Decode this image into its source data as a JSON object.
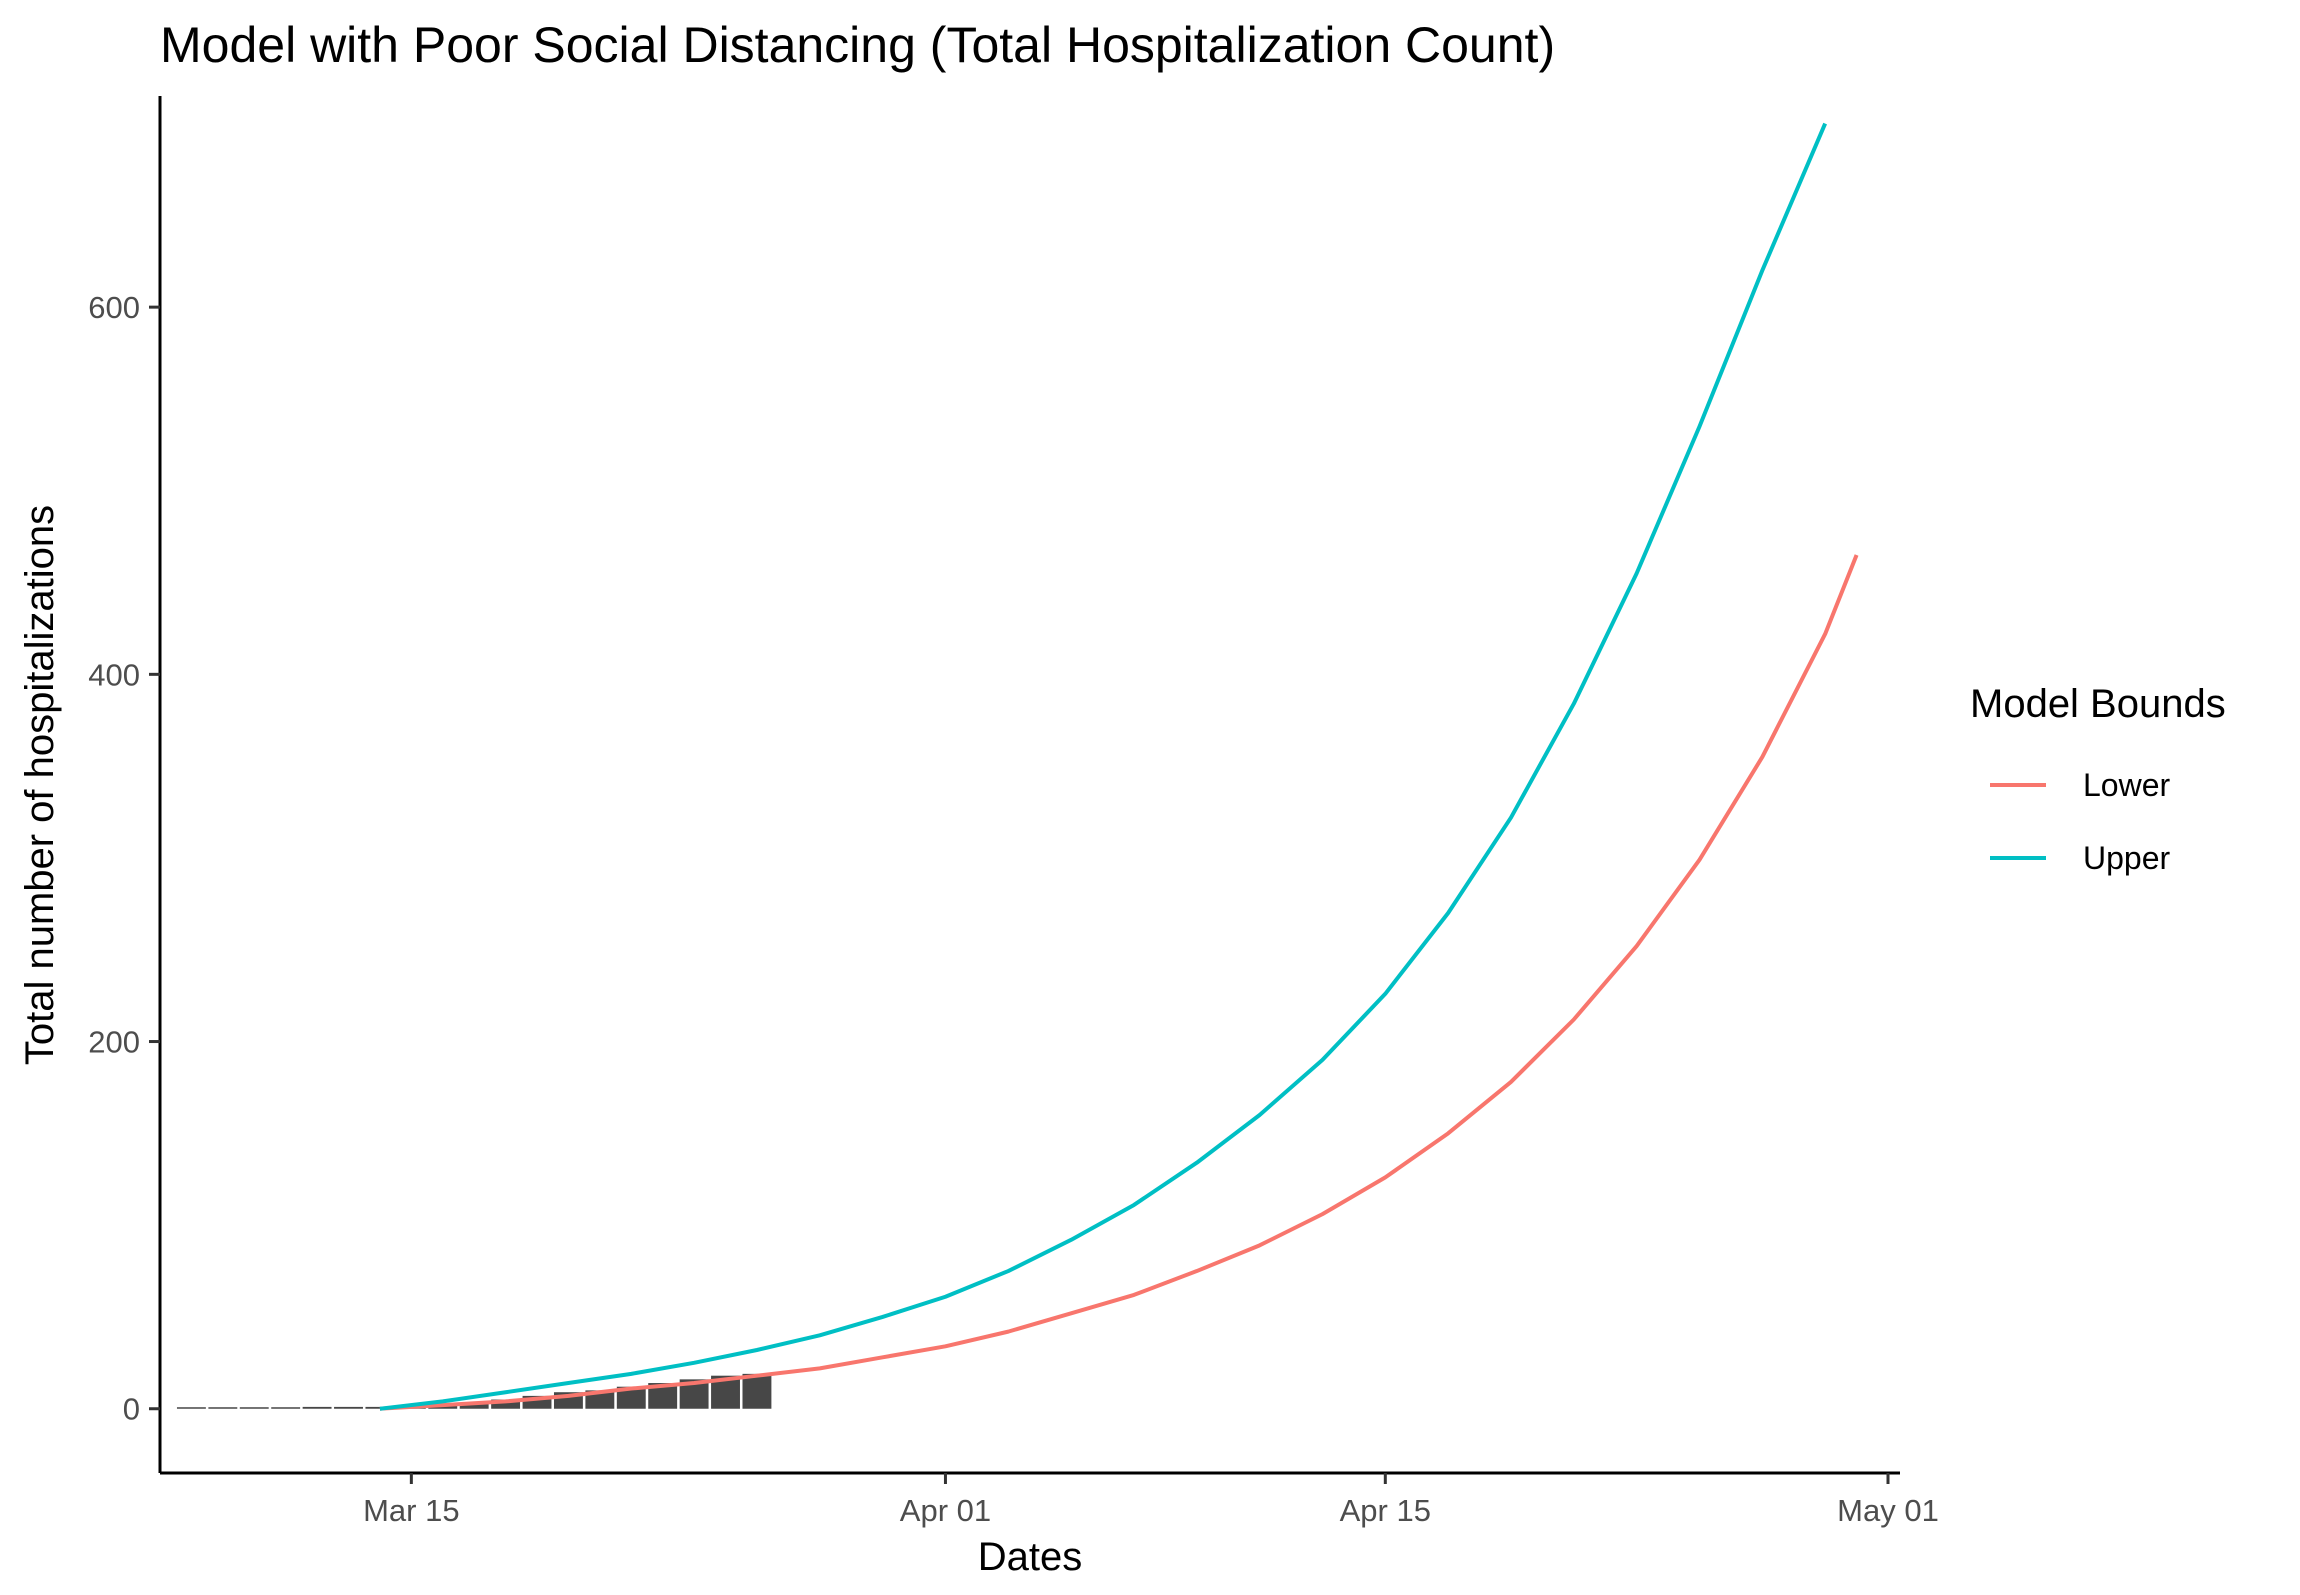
{
  "chart_data": {
    "type": "line",
    "title": "Model with Poor Social Distancing (Total Hospitalization Count)",
    "xlabel": "Dates",
    "ylabel": "Total number of hospitalizations",
    "x_axis": {
      "kind": "date",
      "range": [
        "2020-03-07",
        "2020-05-01"
      ],
      "ticks": [
        {
          "date": "2020-03-15",
          "label": "Mar 15"
        },
        {
          "date": "2020-04-01",
          "label": "Apr 01"
        },
        {
          "date": "2020-04-15",
          "label": "Apr 15"
        },
        {
          "date": "2020-05-01",
          "label": "May 01"
        }
      ]
    },
    "y_axis": {
      "range": [
        -35,
        715
      ],
      "ticks": [
        0,
        200,
        400,
        600
      ]
    },
    "grid": false,
    "legend": {
      "title": "Model Bounds",
      "position": "right",
      "entries": [
        {
          "name": "Lower",
          "color": "#F8766D"
        },
        {
          "name": "Upper",
          "color": "#00BFC4"
        }
      ]
    },
    "bars": {
      "color": "#474747",
      "points": [
        {
          "date": "2020-03-08",
          "value": 0
        },
        {
          "date": "2020-03-09",
          "value": 0
        },
        {
          "date": "2020-03-10",
          "value": 0
        },
        {
          "date": "2020-03-11",
          "value": 0
        },
        {
          "date": "2020-03-12",
          "value": 1
        },
        {
          "date": "2020-03-13",
          "value": 1
        },
        {
          "date": "2020-03-14",
          "value": 1
        },
        {
          "date": "2020-03-15",
          "value": 1
        },
        {
          "date": "2020-03-16",
          "value": 2
        },
        {
          "date": "2020-03-17",
          "value": 3
        },
        {
          "date": "2020-03-18",
          "value": 5
        },
        {
          "date": "2020-03-19",
          "value": 7
        },
        {
          "date": "2020-03-20",
          "value": 9
        },
        {
          "date": "2020-03-21",
          "value": 10
        },
        {
          "date": "2020-03-22",
          "value": 12
        },
        {
          "date": "2020-03-23",
          "value": 14
        },
        {
          "date": "2020-03-24",
          "value": 16
        },
        {
          "date": "2020-03-25",
          "value": 18
        },
        {
          "date": "2020-03-26",
          "value": 19
        }
      ]
    },
    "series": [
      {
        "name": "Lower",
        "color": "#F8766D",
        "points": [
          {
            "date": "2020-03-14",
            "value": 0
          },
          {
            "date": "2020-03-16",
            "value": 2
          },
          {
            "date": "2020-03-18",
            "value": 4
          },
          {
            "date": "2020-03-20",
            "value": 7
          },
          {
            "date": "2020-03-22",
            "value": 11
          },
          {
            "date": "2020-03-24",
            "value": 14
          },
          {
            "date": "2020-03-26",
            "value": 18
          },
          {
            "date": "2020-03-28",
            "value": 22
          },
          {
            "date": "2020-03-30",
            "value": 28
          },
          {
            "date": "2020-04-01",
            "value": 34
          },
          {
            "date": "2020-04-03",
            "value": 42
          },
          {
            "date": "2020-04-05",
            "value": 52
          },
          {
            "date": "2020-04-07",
            "value": 62
          },
          {
            "date": "2020-04-09",
            "value": 75
          },
          {
            "date": "2020-04-11",
            "value": 89
          },
          {
            "date": "2020-04-13",
            "value": 106
          },
          {
            "date": "2020-04-15",
            "value": 126
          },
          {
            "date": "2020-04-17",
            "value": 150
          },
          {
            "date": "2020-04-19",
            "value": 178
          },
          {
            "date": "2020-04-21",
            "value": 212
          },
          {
            "date": "2020-04-23",
            "value": 252
          },
          {
            "date": "2020-04-25",
            "value": 299
          },
          {
            "date": "2020-04-27",
            "value": 355
          },
          {
            "date": "2020-04-29",
            "value": 422
          },
          {
            "date": "2020-04-30",
            "value": 465
          }
        ]
      },
      {
        "name": "Upper",
        "color": "#00BFC4",
        "points": [
          {
            "date": "2020-03-14",
            "value": 0
          },
          {
            "date": "2020-03-16",
            "value": 4
          },
          {
            "date": "2020-03-18",
            "value": 9
          },
          {
            "date": "2020-03-20",
            "value": 14
          },
          {
            "date": "2020-03-22",
            "value": 19
          },
          {
            "date": "2020-03-24",
            "value": 25
          },
          {
            "date": "2020-03-26",
            "value": 32
          },
          {
            "date": "2020-03-28",
            "value": 40
          },
          {
            "date": "2020-03-30",
            "value": 50
          },
          {
            "date": "2020-04-01",
            "value": 61
          },
          {
            "date": "2020-04-03",
            "value": 75
          },
          {
            "date": "2020-04-05",
            "value": 92
          },
          {
            "date": "2020-04-07",
            "value": 111
          },
          {
            "date": "2020-04-09",
            "value": 134
          },
          {
            "date": "2020-04-11",
            "value": 160
          },
          {
            "date": "2020-04-13",
            "value": 190
          },
          {
            "date": "2020-04-15",
            "value": 226
          },
          {
            "date": "2020-04-17",
            "value": 270
          },
          {
            "date": "2020-04-19",
            "value": 322
          },
          {
            "date": "2020-04-21",
            "value": 384
          },
          {
            "date": "2020-04-23",
            "value": 455
          },
          {
            "date": "2020-04-25",
            "value": 535
          },
          {
            "date": "2020-04-27",
            "value": 620
          },
          {
            "date": "2020-04-29",
            "value": 700
          }
        ]
      }
    ]
  }
}
